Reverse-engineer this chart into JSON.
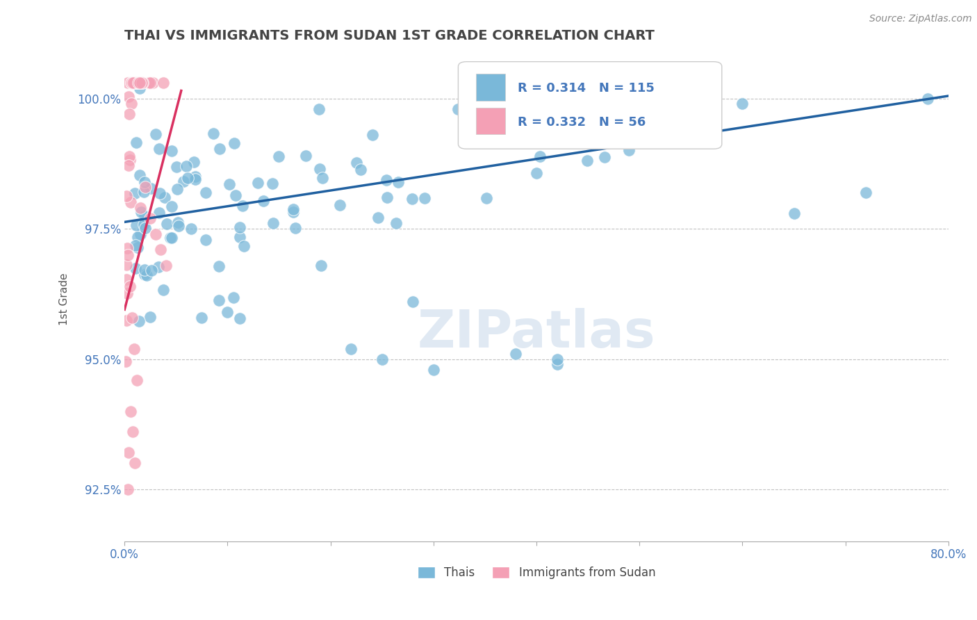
{
  "title": "THAI VS IMMIGRANTS FROM SUDAN 1ST GRADE CORRELATION CHART",
  "source": "Source: ZipAtlas.com",
  "ylabel": "1st Grade",
  "xlim": [
    0.0,
    0.8
  ],
  "ylim": [
    0.915,
    1.008
  ],
  "yticks": [
    0.925,
    0.95,
    0.975,
    1.0
  ],
  "ytick_labels": [
    "92.5%",
    "95.0%",
    "97.5%",
    "100.0%"
  ],
  "xtick_positions": [
    0.0,
    0.1,
    0.2,
    0.3,
    0.4,
    0.5,
    0.6,
    0.7,
    0.8
  ],
  "xtick_labels": [
    "0.0%",
    "",
    "",
    "",
    "",
    "",
    "",
    "",
    "80.0%"
  ],
  "blue_color": "#7ab8d9",
  "pink_color": "#f4a0b5",
  "trend_blue": "#2060a0",
  "trend_pink": "#d93060",
  "stats_color": "#4477bb",
  "title_color": "#444444",
  "blue_trend_x": [
    0.0,
    0.8
  ],
  "blue_trend_y": [
    0.9763,
    1.0005
  ],
  "pink_trend_x": [
    0.0,
    0.055
  ],
  "pink_trend_y": [
    0.9595,
    1.0015
  ]
}
